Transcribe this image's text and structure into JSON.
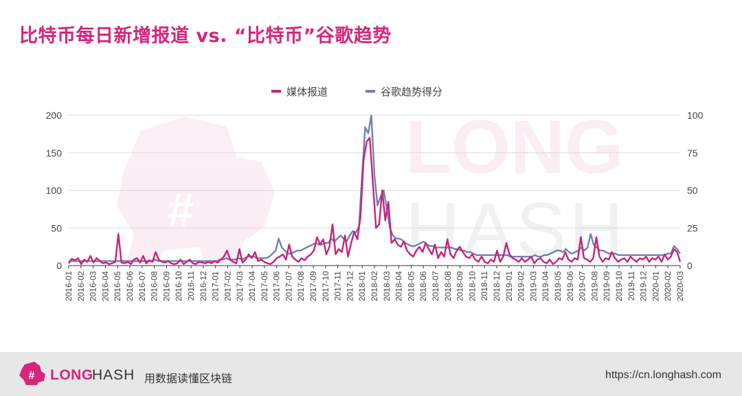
{
  "header": {
    "title": "比特币每日新增报道 vs. “比特币”谷歌趋势"
  },
  "footer": {
    "brand_long": "LONG",
    "brand_hash": "HASH",
    "slogan": "用数据读懂区块链",
    "url": "https://cn.longhash.com"
  },
  "watermark": {
    "text_top": "LONG",
    "text_bottom": "HASH"
  },
  "colors": {
    "title": "#d6267a",
    "media": "#c8227a",
    "google": "#6f7fb8",
    "brand": "#d6267a"
  },
  "chart_data": {
    "type": "line",
    "title": "比特币每日新增报道 vs. “比特币”谷歌趋势",
    "legend_position": "top-center",
    "grid": "horizontal",
    "y_left": {
      "ylim": [
        0,
        200
      ],
      "ticks": [
        0,
        50,
        100,
        150,
        200
      ]
    },
    "y_right": {
      "ylim": [
        0,
        100
      ],
      "ticks": [
        0,
        25,
        50,
        75,
        100
      ]
    },
    "x_tick_labels": [
      "2016-01",
      "2016-02",
      "2016-03",
      "2016-04",
      "2016-05",
      "2016-06",
      "2016-07",
      "2016-08",
      "2016-09",
      "2016-10",
      "2016-11",
      "2016-12",
      "2017-01",
      "2017-02",
      "2017-03",
      "2017-04",
      "2017-05",
      "2017-06",
      "2017-07",
      "2017-08",
      "2017-09",
      "2017-10",
      "2017-11",
      "2017-12",
      "2018-01",
      "2018-02",
      "2018-03",
      "2018-04",
      "2018-05",
      "2018-06",
      "2018-07",
      "2018-08",
      "2018-09",
      "2018-10",
      "2018-11",
      "2018-12",
      "2019-01",
      "2019-02",
      "2019-03",
      "2019-04",
      "2019-05",
      "2019-06",
      "2019-07",
      "2019-08",
      "2019-09",
      "2019-10",
      "2019-11",
      "2019-12",
      "2020-01",
      "2020-02",
      "2020-03"
    ],
    "series": [
      {
        "name": "媒体报道",
        "axis": "left",
        "color": "#c8227a",
        "weekly_values": [
          3,
          9,
          7,
          10,
          2,
          8,
          5,
          13,
          4,
          10,
          6,
          3,
          4,
          2,
          3,
          5,
          42,
          4,
          3,
          5,
          2,
          8,
          10,
          4,
          13,
          3,
          7,
          5,
          18,
          8,
          5,
          4,
          6,
          3,
          2,
          3,
          8,
          2,
          5,
          8,
          3,
          2,
          5,
          4,
          3,
          5,
          3,
          6,
          4,
          8,
          12,
          20,
          8,
          5,
          3,
          22,
          4,
          8,
          15,
          10,
          18,
          6,
          8,
          5,
          3,
          2,
          5,
          10,
          12,
          15,
          8,
          28,
          12,
          8,
          5,
          10,
          7,
          12,
          15,
          20,
          38,
          28,
          35,
          15,
          25,
          55,
          15,
          22,
          18,
          40,
          12,
          30,
          45,
          35,
          65,
          140,
          165,
          170,
          110,
          50,
          55,
          100,
          60,
          85,
          30,
          35,
          28,
          25,
          32,
          20,
          15,
          12,
          20,
          25,
          18,
          30,
          22,
          15,
          28,
          10,
          18,
          12,
          35,
          15,
          10,
          20,
          25,
          18,
          12,
          10,
          15,
          8,
          5,
          12,
          5,
          3,
          8,
          5,
          20,
          5,
          12,
          30,
          15,
          10,
          8,
          5,
          10,
          5,
          8,
          12,
          3,
          8,
          10,
          5,
          3,
          8,
          2,
          5,
          10,
          8,
          18,
          8,
          5,
          10,
          8,
          38,
          10,
          8,
          5,
          10,
          38,
          12,
          5,
          10,
          8,
          18,
          10,
          5,
          8,
          10,
          5,
          12,
          8,
          5,
          10,
          8,
          12,
          5,
          10,
          8,
          12,
          5,
          15,
          8,
          12,
          22,
          18,
          5
        ]
      },
      {
        "name": "谷歌趋势得分",
        "axis": "right",
        "color": "#6f7fb8",
        "weekly_values": [
          3,
          3,
          3,
          3,
          3,
          3,
          3,
          3,
          3,
          3,
          3,
          3,
          3,
          3,
          3,
          3,
          3,
          3,
          3,
          3,
          3,
          3,
          3,
          3,
          3,
          3,
          3,
          3,
          4,
          3,
          3,
          3,
          3,
          3,
          3,
          3,
          3,
          3,
          3,
          3,
          3,
          3,
          3,
          3,
          3,
          3,
          3,
          3,
          3,
          4,
          4,
          5,
          4,
          4,
          4,
          5,
          4,
          5,
          6,
          6,
          6,
          5,
          5,
          5,
          5,
          6,
          8,
          10,
          18,
          12,
          10,
          8,
          8,
          9,
          10,
          10,
          11,
          12,
          13,
          14,
          15,
          14,
          14,
          15,
          15,
          18,
          16,
          18,
          20,
          18,
          16,
          20,
          23,
          22,
          26,
          60,
          92,
          88,
          100,
          60,
          40,
          46,
          50,
          38,
          25,
          20,
          18,
          18,
          17,
          15,
          14,
          13,
          13,
          14,
          15,
          16,
          14,
          13,
          13,
          12,
          12,
          12,
          12,
          12,
          12,
          11,
          11,
          10,
          10,
          9,
          9,
          8,
          7,
          7,
          7,
          7,
          7,
          7,
          7,
          7,
          7,
          7,
          7,
          6,
          6,
          6,
          6,
          6,
          6,
          6,
          6,
          7,
          6,
          6,
          7,
          7,
          8,
          9,
          10,
          10,
          9,
          11,
          9,
          8,
          9,
          10,
          12,
          10,
          12,
          21,
          14,
          12,
          10,
          10,
          9,
          8,
          8,
          8,
          7,
          7,
          7,
          7,
          7,
          7,
          7,
          7,
          7,
          7,
          7,
          7,
          7,
          7,
          7,
          7,
          8,
          8,
          13,
          11,
          8
        ]
      }
    ]
  }
}
